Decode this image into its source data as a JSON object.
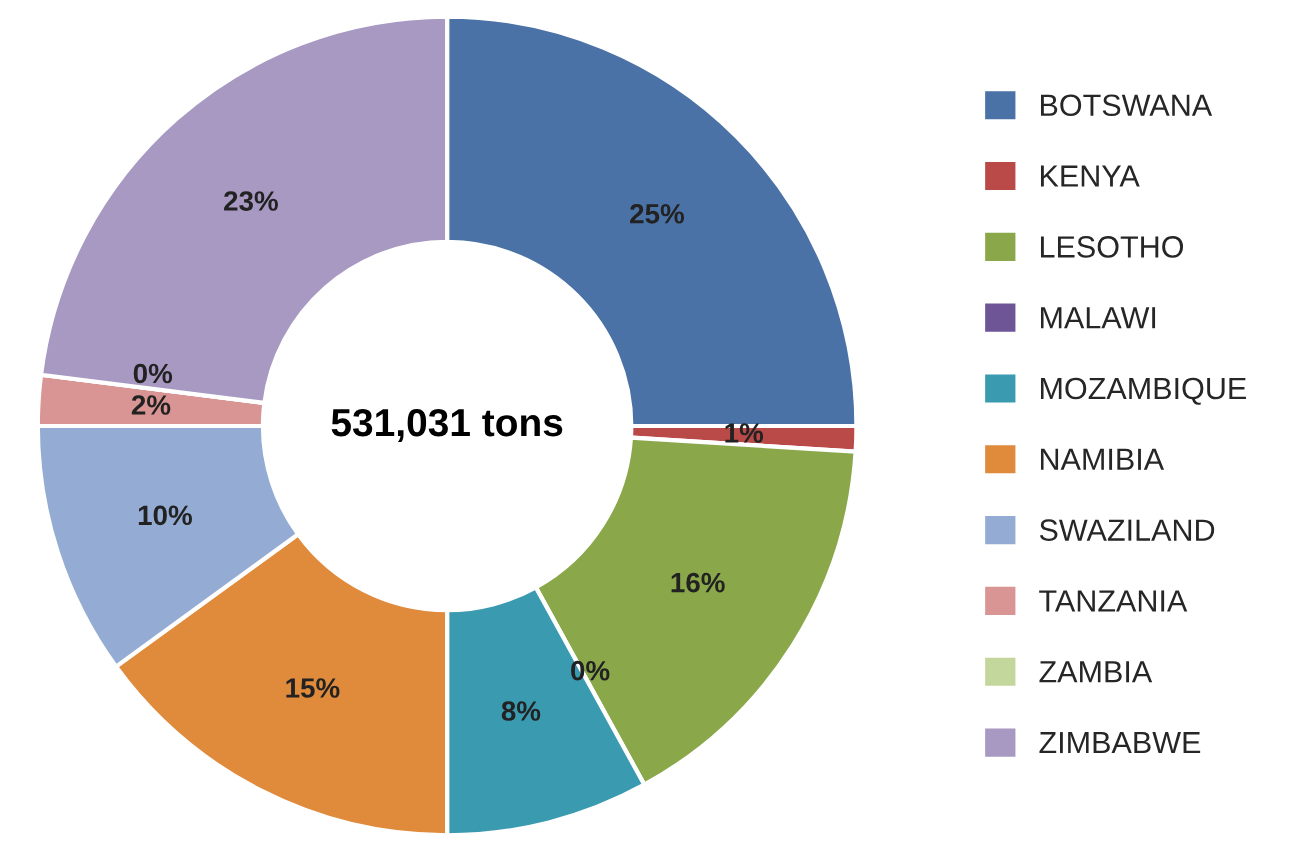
{
  "chart_data": {
    "type": "donut",
    "categories": [
      "BOTSWANA",
      "KENYA",
      "LESOTHO",
      "MALAWI",
      "MOZAMBIQUE",
      "NAMIBIA",
      "SWAZILAND",
      "TANZANIA",
      "ZAMBIA",
      "ZIMBABWE"
    ],
    "values": [
      25,
      1,
      16,
      0,
      8,
      15,
      10,
      2,
      0,
      23
    ],
    "colors": [
      "#4a72a6",
      "#b94a48",
      "#8aa84a",
      "#6e5596",
      "#3a9bb0",
      "#e08a3c",
      "#94acd4",
      "#d99594",
      "#c3d69b",
      "#a799c2"
    ],
    "value_labels": [
      "25%",
      "1%",
      "16%",
      "0%",
      "8%",
      "15%",
      "10%",
      "2%",
      "0%",
      "23%"
    ],
    "annotations": [
      "531,031 tons"
    ],
    "legend": "right"
  }
}
